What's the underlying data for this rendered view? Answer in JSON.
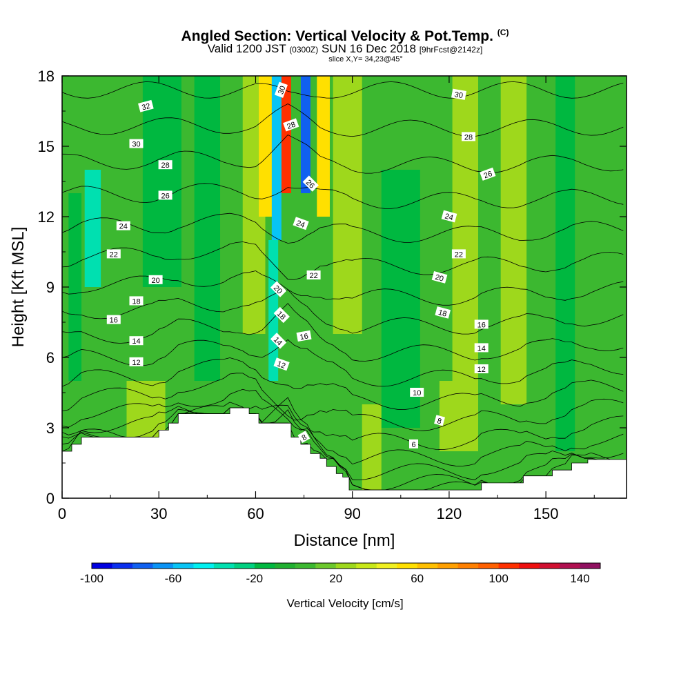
{
  "header": {
    "title": "Angled Section: Vertical Velocity & Pot.Temp.",
    "title_tag": "(C)",
    "valid_prefix": "Valid 1200 JST",
    "valid_zulu": "(0300Z)",
    "valid_date": "SUN 16 Dec 2018",
    "valid_fcst": "[9hrFcst@2142z]",
    "slice": "slice X,Y= 34,23@45°"
  },
  "chart_data": {
    "type": "heatmap",
    "xlabel": "Distance [nm]",
    "ylabel": "Height [Kft MSL]",
    "xlim": [
      0,
      175
    ],
    "ylim": [
      0,
      18
    ],
    "x_ticks": [
      0,
      30,
      60,
      90,
      120,
      150
    ],
    "y_ticks": [
      0,
      3,
      6,
      9,
      12,
      15,
      18
    ],
    "grid": false,
    "terrain_kft": [
      [
        0,
        2.0
      ],
      [
        3,
        2.0
      ],
      [
        3,
        2.3
      ],
      [
        6,
        2.3
      ],
      [
        6,
        2.6
      ],
      [
        30,
        2.6
      ],
      [
        30,
        2.9
      ],
      [
        33,
        2.9
      ],
      [
        33,
        3.2
      ],
      [
        36,
        3.2
      ],
      [
        36,
        3.6
      ],
      [
        52,
        3.6
      ],
      [
        52,
        3.85
      ],
      [
        58,
        3.85
      ],
      [
        58,
        3.6
      ],
      [
        61,
        3.6
      ],
      [
        61,
        3.2
      ],
      [
        71,
        3.2
      ],
      [
        71,
        2.6
      ],
      [
        74,
        2.6
      ],
      [
        74,
        2.3
      ],
      [
        77,
        2.3
      ],
      [
        77,
        1.9
      ],
      [
        80,
        1.9
      ],
      [
        80,
        1.7
      ],
      [
        82,
        1.7
      ],
      [
        82,
        1.35
      ],
      [
        85,
        1.35
      ],
      [
        85,
        1.05
      ],
      [
        87,
        1.05
      ],
      [
        87,
        0.9
      ],
      [
        89,
        0.9
      ],
      [
        89,
        0.35
      ],
      [
        130,
        0.35
      ],
      [
        130,
        0.65
      ],
      [
        143,
        0.65
      ],
      [
        143,
        0.95
      ],
      [
        152,
        0.95
      ],
      [
        152,
        1.2
      ],
      [
        158,
        1.2
      ],
      [
        158,
        1.5
      ],
      [
        163,
        1.5
      ],
      [
        163,
        1.65
      ],
      [
        175,
        1.65
      ]
    ],
    "fill_series": {
      "name": "Vertical Velocity",
      "units": "cm/s",
      "color_levels": [
        -100,
        -90,
        -80,
        -70,
        -60,
        -50,
        -40,
        -30,
        -20,
        -10,
        0,
        10,
        20,
        30,
        40,
        50,
        60,
        70,
        80,
        90,
        100,
        110,
        120,
        130,
        140,
        150
      ],
      "colors": [
        "#0000e0",
        "#0a2fee",
        "#1060f0",
        "#0a93f5",
        "#08c4f5",
        "#00f0f0",
        "#00e0b0",
        "#00d080",
        "#00b840",
        "#20b030",
        "#3cb830",
        "#6cc82c",
        "#9ed81c",
        "#c8e818",
        "#f0f020",
        "#ffe000",
        "#ffc000",
        "#ffa000",
        "#ff8000",
        "#ff6000",
        "#ff3000",
        "#ee1010",
        "#d01030",
        "#b01050",
        "#901060",
        "#700070"
      ],
      "colorbar_ticks": [
        -100,
        -60,
        -20,
        20,
        60,
        100,
        140
      ],
      "colorbar_label": "Vertical Velocity [cm/s]",
      "features": [
        {
          "x": 0,
          "w": 180,
          "ymin": 0,
          "ymax": 18,
          "value": 5
        },
        {
          "x": 25,
          "w": 12,
          "ymin": 9,
          "ymax": 18,
          "value": -20
        },
        {
          "x": 7,
          "w": 5,
          "ymin": 9,
          "ymax": 14,
          "value": -40
        },
        {
          "x": 2,
          "w": 4,
          "ymin": 5,
          "ymax": 13,
          "value": -20
        },
        {
          "x": 41,
          "w": 8,
          "ymin": 5,
          "ymax": 18,
          "value": -20
        },
        {
          "x": 56,
          "w": 7,
          "ymin": 7,
          "ymax": 18,
          "value": 25
        },
        {
          "x": 61,
          "w": 5,
          "ymin": 12,
          "ymax": 18,
          "value": 55
        },
        {
          "x": 68,
          "w": 3,
          "ymin": 13,
          "ymax": 18,
          "value": 100
        },
        {
          "x": 65,
          "w": 3,
          "ymin": 11,
          "ymax": 18,
          "value": -55
        },
        {
          "x": 64,
          "w": 3,
          "ymin": 5,
          "ymax": 11,
          "value": -35
        },
        {
          "x": 74,
          "w": 3,
          "ymin": 13,
          "ymax": 18,
          "value": -75
        },
        {
          "x": 79,
          "w": 4,
          "ymin": 12,
          "ymax": 18,
          "value": 55
        },
        {
          "x": 84,
          "w": 9,
          "ymin": 7,
          "ymax": 18,
          "value": 20
        },
        {
          "x": 99,
          "w": 12,
          "ymin": 3,
          "ymax": 14,
          "value": -20
        },
        {
          "x": 121,
          "w": 8,
          "ymin": 4,
          "ymax": 18,
          "value": 20
        },
        {
          "x": 136,
          "w": 8,
          "ymin": 4,
          "ymax": 18,
          "value": 20
        },
        {
          "x": 153,
          "w": 6,
          "ymin": 2,
          "ymax": 18,
          "value": -20
        },
        {
          "x": 20,
          "w": 12,
          "ymin": 2,
          "ymax": 5,
          "value": 25
        },
        {
          "x": 117,
          "w": 12,
          "ymin": 2,
          "ymax": 5,
          "value": 25
        },
        {
          "x": 93,
          "w": 6,
          "ymin": 0,
          "ymax": 4,
          "value": 20
        }
      ]
    },
    "contour_series": {
      "name": "Pot.Temp.",
      "units": "C",
      "levels": [
        2,
        4,
        6,
        8,
        10,
        12,
        14,
        16,
        18,
        20,
        22,
        24,
        26,
        28,
        30,
        32,
        34
      ],
      "labels": [
        {
          "text": "32",
          "x": 26,
          "y": 16.7,
          "angle": -15
        },
        {
          "text": "30",
          "x": 23,
          "y": 15.1,
          "angle": 0
        },
        {
          "text": "28",
          "x": 32,
          "y": 14.2,
          "angle": 0
        },
        {
          "text": "26",
          "x": 32,
          "y": 12.9,
          "angle": 0
        },
        {
          "text": "24",
          "x": 19,
          "y": 11.6,
          "angle": 0
        },
        {
          "text": "22",
          "x": 16,
          "y": 10.4,
          "angle": 0
        },
        {
          "text": "20",
          "x": 29,
          "y": 9.3,
          "angle": 0
        },
        {
          "text": "18",
          "x": 23,
          "y": 8.4,
          "angle": 0
        },
        {
          "text": "16",
          "x": 16,
          "y": 7.6,
          "angle": 0
        },
        {
          "text": "14",
          "x": 23,
          "y": 6.7,
          "angle": 0
        },
        {
          "text": "12",
          "x": 23,
          "y": 5.8,
          "angle": 0
        },
        {
          "text": "30",
          "x": 68,
          "y": 17.4,
          "angle": -70
        },
        {
          "text": "28",
          "x": 71,
          "y": 15.9,
          "angle": -20
        },
        {
          "text": "26",
          "x": 77,
          "y": 13.4,
          "angle": 45
        },
        {
          "text": "24",
          "x": 74,
          "y": 11.7,
          "angle": 20
        },
        {
          "text": "22",
          "x": 78,
          "y": 9.5,
          "angle": 0
        },
        {
          "text": "20",
          "x": 67,
          "y": 8.9,
          "angle": 45
        },
        {
          "text": "18",
          "x": 68,
          "y": 7.8,
          "angle": 45
        },
        {
          "text": "16",
          "x": 75,
          "y": 6.9,
          "angle": -10
        },
        {
          "text": "14",
          "x": 67,
          "y": 6.7,
          "angle": 45
        },
        {
          "text": "12",
          "x": 68,
          "y": 5.7,
          "angle": 20
        },
        {
          "text": "8",
          "x": 75,
          "y": 2.6,
          "angle": -30
        },
        {
          "text": "30",
          "x": 123,
          "y": 17.2,
          "angle": 10
        },
        {
          "text": "28",
          "x": 126,
          "y": 15.4,
          "angle": 0
        },
        {
          "text": "26",
          "x": 132,
          "y": 13.8,
          "angle": -20
        },
        {
          "text": "24",
          "x": 120,
          "y": 12.0,
          "angle": 15
        },
        {
          "text": "22",
          "x": 123,
          "y": 10.4,
          "angle": 0
        },
        {
          "text": "20",
          "x": 117,
          "y": 9.4,
          "angle": 15
        },
        {
          "text": "18",
          "x": 118,
          "y": 7.9,
          "angle": 15
        },
        {
          "text": "16",
          "x": 130,
          "y": 7.4,
          "angle": 0
        },
        {
          "text": "14",
          "x": 130,
          "y": 6.4,
          "angle": 0
        },
        {
          "text": "12",
          "x": 130,
          "y": 5.5,
          "angle": 0
        },
        {
          "text": "10",
          "x": 110,
          "y": 4.5,
          "angle": 0
        },
        {
          "text": "8",
          "x": 117,
          "y": 3.3,
          "angle": 15
        },
        {
          "text": "6",
          "x": 109,
          "y": 2.3,
          "angle": 0
        }
      ]
    }
  }
}
